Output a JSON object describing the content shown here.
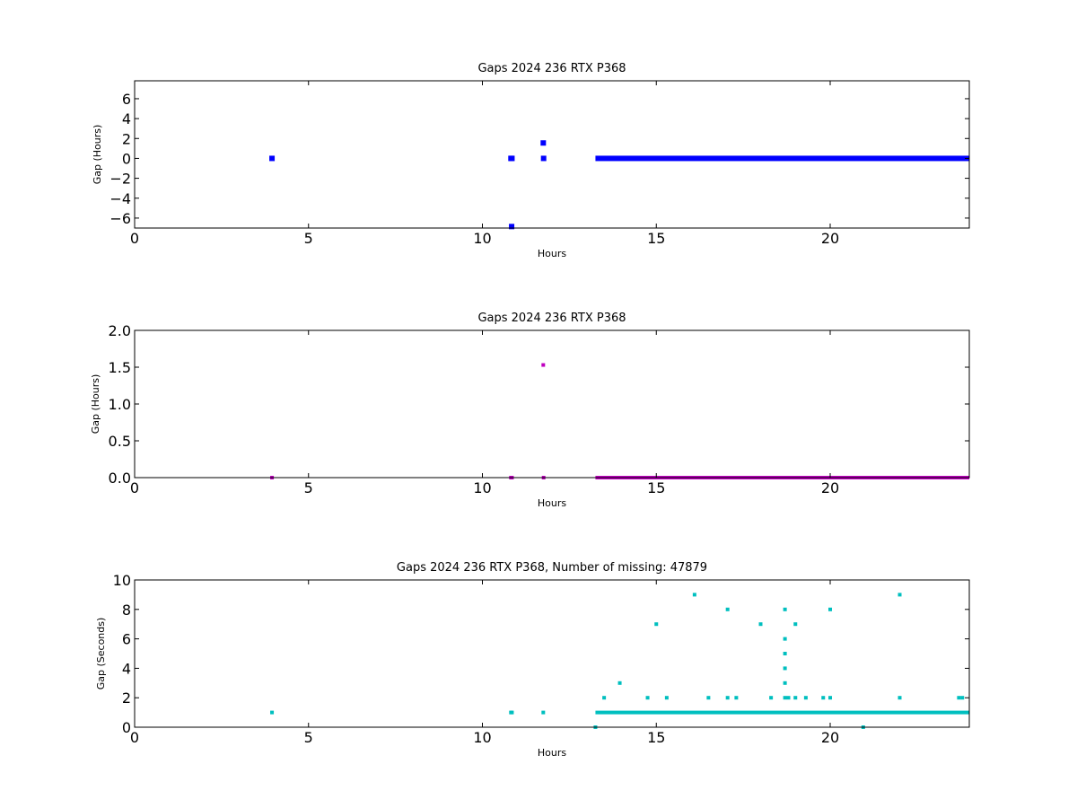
{
  "chart_data": [
    {
      "type": "scatter",
      "title": "Gaps 2024 236 RTX  P368",
      "xlabel": "Hours",
      "ylabel": "Gap (Hours)",
      "xlim": [
        0,
        24
      ],
      "ylim": [
        -7,
        7.8
      ],
      "xticks": [
        0,
        5,
        10,
        15,
        20
      ],
      "yticks": [
        -6,
        -4,
        -2,
        0,
        2,
        4,
        6
      ],
      "ytick_labels": [
        "−6",
        "−4",
        "−2",
        "0",
        "2",
        "4",
        "6"
      ],
      "grid": false,
      "series": [
        {
          "color": "#0000ff",
          "marker_size": 3,
          "points": [
            [
              3.95,
              0.0
            ],
            [
              10.82,
              0.0
            ],
            [
              10.85,
              0.0
            ],
            [
              10.84,
              -6.85
            ],
            [
              11.75,
              1.55
            ],
            [
              11.76,
              0.0
            ]
          ],
          "dense_runs": [
            [
              13.25,
              24.0,
              0.0
            ]
          ]
        }
      ]
    },
    {
      "type": "scatter",
      "title": "Gaps 2024 236 RTX  P368",
      "xlabel": "Hours",
      "ylabel": "Gap (Hours)",
      "xlim": [
        0,
        24
      ],
      "ylim": [
        0,
        2.0
      ],
      "xticks": [
        0,
        5,
        10,
        15,
        20
      ],
      "yticks": [
        0,
        0.5,
        1.0,
        1.5,
        2.0
      ],
      "ytick_labels": [
        "0.0",
        "0.5",
        "1.0",
        "1.5",
        "2.0"
      ],
      "grid": false,
      "series": [
        {
          "color": "#bf00bf",
          "marker_size": 2,
          "points": [
            [
              3.95,
              0.0
            ],
            [
              10.82,
              0.0
            ],
            [
              10.85,
              0.0
            ],
            [
              11.75,
              1.53
            ],
            [
              11.76,
              0.0
            ]
          ],
          "dense_runs": [
            [
              13.25,
              24.0,
              0.0
            ]
          ]
        }
      ]
    },
    {
      "type": "scatter",
      "title": "Gaps 2024 236 RTX  P368, Number of missing: 47879",
      "xlabel": "Hours",
      "ylabel": "Gap (Seconds)",
      "xlim": [
        0,
        24
      ],
      "ylim": [
        0,
        10
      ],
      "xticks": [
        0,
        5,
        10,
        15,
        20
      ],
      "yticks": [
        0,
        2,
        4,
        6,
        8,
        10
      ],
      "ytick_labels": [
        "0",
        "2",
        "4",
        "6",
        "8",
        "10"
      ],
      "grid": false,
      "series": [
        {
          "color": "#00bfbf",
          "marker_size": 2,
          "points": [
            [
              3.95,
              1
            ],
            [
              10.82,
              1
            ],
            [
              10.85,
              1
            ],
            [
              11.75,
              1
            ],
            [
              13.25,
              0
            ],
            [
              13.5,
              2
            ],
            [
              13.95,
              3
            ],
            [
              14.75,
              2
            ],
            [
              15.0,
              7
            ],
            [
              15.3,
              2
            ],
            [
              16.1,
              9
            ],
            [
              16.5,
              2
            ],
            [
              17.05,
              8
            ],
            [
              17.05,
              2
            ],
            [
              17.3,
              2
            ],
            [
              18.0,
              7
            ],
            [
              18.3,
              2
            ],
            [
              18.7,
              8
            ],
            [
              18.7,
              6
            ],
            [
              18.7,
              5
            ],
            [
              18.7,
              4
            ],
            [
              18.7,
              3
            ],
            [
              18.7,
              2
            ],
            [
              18.8,
              2
            ],
            [
              19.0,
              7
            ],
            [
              19.0,
              2
            ],
            [
              19.3,
              2
            ],
            [
              19.8,
              2
            ],
            [
              20.0,
              8
            ],
            [
              20.0,
              2
            ],
            [
              20.95,
              0
            ],
            [
              22.0,
              9
            ],
            [
              22.0,
              2
            ],
            [
              23.7,
              2
            ],
            [
              23.8,
              2
            ]
          ],
          "dense_runs": [
            [
              13.25,
              24.0,
              1
            ]
          ]
        }
      ]
    }
  ]
}
